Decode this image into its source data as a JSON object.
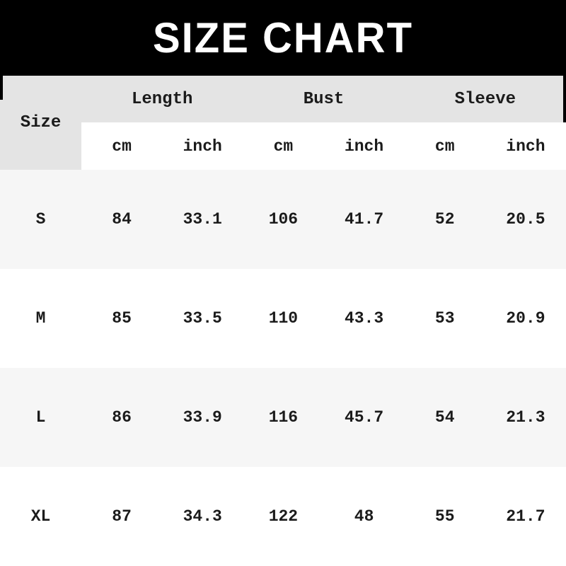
{
  "banner": {
    "title": "SIZE CHART",
    "bg_color": "#000000",
    "text_color": "#ffffff"
  },
  "table": {
    "size_header": "Size",
    "groups": [
      {
        "label": "Length"
      },
      {
        "label": "Bust"
      },
      {
        "label": "Sleeve"
      }
    ],
    "unit_headers": [
      "cm",
      "inch",
      "cm",
      "inch",
      "cm",
      "inch"
    ],
    "rows": [
      {
        "size": "S",
        "values": [
          "84",
          "33.1",
          "106",
          "41.7",
          "52",
          "20.5"
        ]
      },
      {
        "size": "M",
        "values": [
          "85",
          "33.5",
          "110",
          "43.3",
          "53",
          "20.9"
        ]
      },
      {
        "size": "L",
        "values": [
          "86",
          "33.9",
          "116",
          "45.7",
          "54",
          "21.3"
        ]
      },
      {
        "size": "XL",
        "values": [
          "87",
          "34.3",
          "122",
          "48",
          "55",
          "21.7"
        ]
      }
    ],
    "colors": {
      "header_bg": "#e4e4e4",
      "shaded_row_bg": "#f6f6f6",
      "plain_row_bg": "#ffffff",
      "text": "#1b1b1b"
    }
  }
}
